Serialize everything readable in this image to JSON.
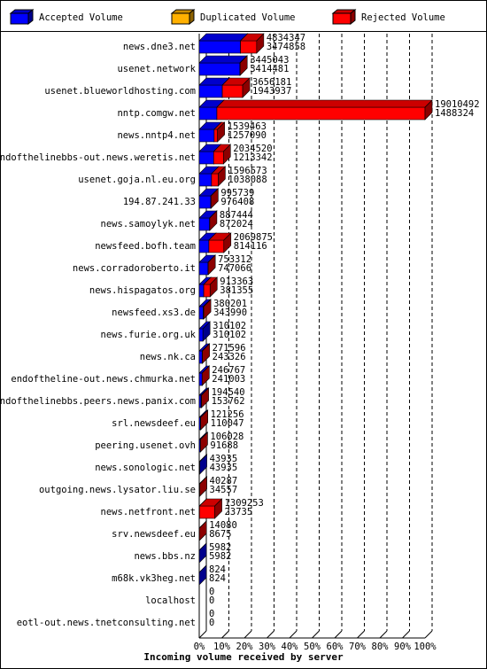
{
  "chart_data": {
    "type": "bar3d-stacked-horizontal",
    "xlabel": "Incoming volume received by server",
    "categories": [
      "news.dne3.net",
      "usenet.network",
      "usenet.blueworldhosting.com",
      "nntp.comgw.net",
      "news.nntp4.net",
      "endofthelinebbs-out.news.weretis.net",
      "usenet.goja.nl.eu.org",
      "194.87.241.33",
      "news.samoylyk.net",
      "newsfeed.bofh.team",
      "news.corradoroberto.it",
      "news.hispagatos.org",
      "newsfeed.xs3.de",
      "news.furie.org.uk",
      "news.nk.ca",
      "endoftheline-out.news.chmurka.net",
      "endofthelinebbs.peers.news.panix.com",
      "srl.newsdeef.eu",
      "peering.usenet.ovh",
      "news.sonologic.net",
      "outgoing.news.lysator.liu.se",
      "news.netfront.net",
      "srv.newsdeef.eu",
      "news.bbs.nz",
      "m68k.vk3heg.net",
      "localhost",
      "eotl-out.news.tnetconsulting.net"
    ],
    "totals": [
      4834347,
      3445043,
      3656181,
      19010492,
      1539463,
      2034520,
      1596573,
      995739,
      887444,
      2069875,
      753312,
      913363,
      380201,
      310102,
      271596,
      246767,
      194540,
      121256,
      106028,
      43935,
      40287,
      1309253,
      14080,
      5982,
      824,
      0,
      0
    ],
    "series": [
      {
        "name": "Accepted Volume",
        "color": "#0000ff",
        "values": [
          3474858,
          3414481,
          1943937,
          1488324,
          1257090,
          1213342,
          1038088,
          976408,
          872024,
          814116,
          747066,
          381355,
          343990,
          310102,
          243326,
          241003,
          153762,
          110047,
          91688,
          43935,
          34557,
          23735,
          8675,
          5982,
          824,
          0,
          0
        ]
      },
      {
        "name": "Duplicated Volume",
        "color": "#ffb000",
        "values": [
          0,
          0,
          0,
          0,
          0,
          0,
          0,
          0,
          0,
          0,
          0,
          0,
          0,
          0,
          0,
          0,
          0,
          0,
          0,
          0,
          0,
          0,
          0,
          0,
          0,
          0,
          0
        ]
      },
      {
        "name": "Rejected Volume",
        "color": "#ff0000",
        "values": [
          1359489,
          30562,
          1712244,
          17522168,
          282373,
          821178,
          558485,
          19331,
          15420,
          1255759,
          6246,
          532008,
          36211,
          0,
          28270,
          5764,
          40778,
          11209,
          14340,
          0,
          5730,
          1285518,
          5405,
          0,
          0,
          0,
          0
        ]
      }
    ],
    "xlim": [
      0,
      19010492
    ],
    "xticks": [
      {
        "value": 0,
        "label": "0%"
      },
      {
        "value": 1901049.2,
        "label": "10%"
      },
      {
        "value": 3802098.4,
        "label": "20%"
      },
      {
        "value": 5703147.6,
        "label": "30%"
      },
      {
        "value": 7604196.8,
        "label": "40%"
      },
      {
        "value": 9505246,
        "label": "50%"
      },
      {
        "value": 11406295.2,
        "label": "60%"
      },
      {
        "value": 13307344.4,
        "label": "70%"
      },
      {
        "value": 15208393.6,
        "label": "80%"
      },
      {
        "value": 17109442.8,
        "label": "90%"
      },
      {
        "value": 19010492,
        "label": "100%"
      }
    ],
    "grid": true
  }
}
